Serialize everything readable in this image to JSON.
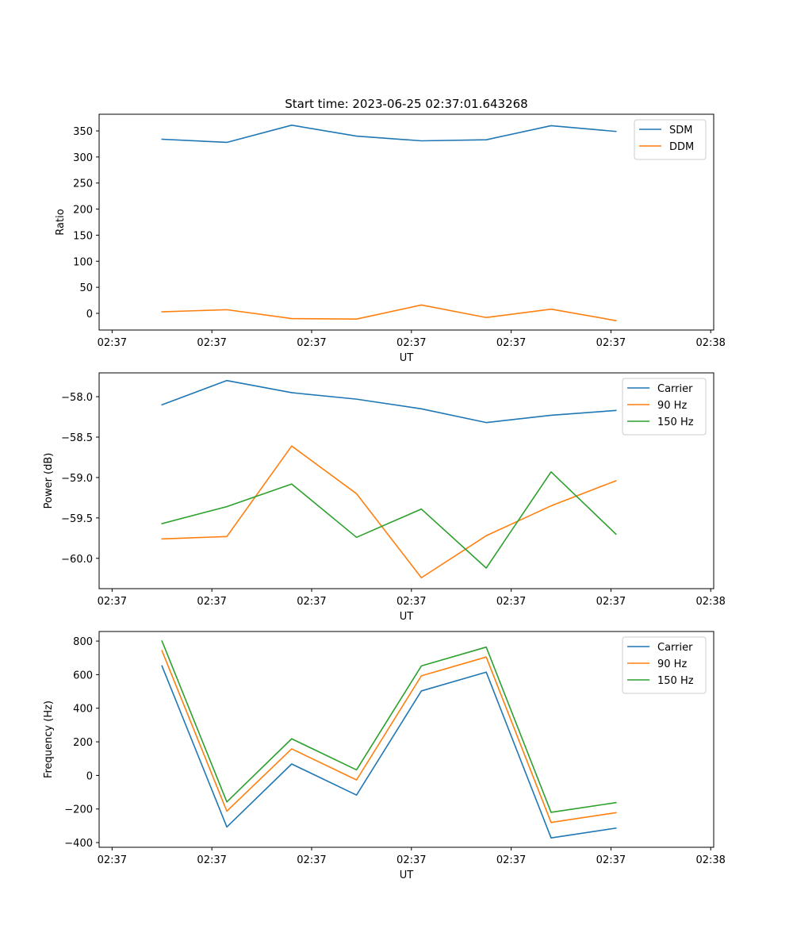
{
  "title": "Start time: 2023-06-25 02:37:01.643268",
  "colors": {
    "blue": "#1f77b4",
    "orange": "#ff7f0e",
    "green": "#2ca02c"
  },
  "chart_data": [
    {
      "type": "line",
      "title": "Start time: 2023-06-25 02:37:01.643268",
      "xlabel": "UT",
      "ylabel": "Ratio",
      "x_tick_labels": [
        "02:37",
        "02:37",
        "02:37",
        "02:37",
        "02:37",
        "02:37",
        "02:38"
      ],
      "x_tick_positions": [
        0,
        1,
        2,
        3,
        4,
        5,
        6
      ],
      "x_range": [
        -0.13,
        6.03
      ],
      "x": [
        0.5,
        1.15,
        1.8,
        2.45,
        3.1,
        3.75,
        4.4,
        5.05
      ],
      "ylim": [
        -32,
        382
      ],
      "y_ticks": [
        0,
        50,
        100,
        150,
        200,
        250,
        300,
        350
      ],
      "legend_position": "top-right",
      "grid": false,
      "series": [
        {
          "name": "SDM",
          "color": "#1f77b4",
          "values": [
            334,
            328,
            361,
            340,
            331,
            333,
            360,
            349
          ]
        },
        {
          "name": "DDM",
          "color": "#ff7f0e",
          "values": [
            3,
            7,
            -10,
            -11,
            16,
            -8,
            8,
            -14
          ]
        }
      ]
    },
    {
      "type": "line",
      "title": "",
      "xlabel": "UT",
      "ylabel": "Power (dB)",
      "x_tick_labels": [
        "02:37",
        "02:37",
        "02:37",
        "02:37",
        "02:37",
        "02:37",
        "02:38"
      ],
      "x_tick_positions": [
        0,
        1,
        2,
        3,
        4,
        5,
        6
      ],
      "x_range": [
        -0.13,
        6.03
      ],
      "x": [
        0.5,
        1.15,
        1.8,
        2.45,
        3.1,
        3.75,
        4.4,
        5.05
      ],
      "ylim": [
        -60.375,
        -57.705
      ],
      "y_ticks": [
        -60.0,
        -59.5,
        -59.0,
        -58.5,
        -58.0
      ],
      "y_tick_labels": [
        "−60.0",
        "−59.5",
        "−59.0",
        "−58.5",
        "−58.0"
      ],
      "legend_position": "top-right",
      "grid": false,
      "series": [
        {
          "name": "Carrier",
          "color": "#1f77b4",
          "values": [
            -58.1,
            -57.8,
            -57.95,
            -58.03,
            -58.15,
            -58.32,
            -58.23,
            -58.17
          ]
        },
        {
          "name": "90 Hz",
          "color": "#ff7f0e",
          "values": [
            -59.76,
            -59.73,
            -58.61,
            -59.2,
            -60.24,
            -59.72,
            -59.35,
            -59.04
          ]
        },
        {
          "name": "150 Hz",
          "color": "#2ca02c",
          "values": [
            -59.57,
            -59.36,
            -59.08,
            -59.74,
            -59.39,
            -60.12,
            -58.93,
            -59.7
          ]
        }
      ]
    },
    {
      "type": "line",
      "title": "",
      "xlabel": "UT",
      "ylabel": "Frequency (Hz)",
      "x_tick_labels": [
        "02:37",
        "02:37",
        "02:37",
        "02:37",
        "02:37",
        "02:37",
        "02:38"
      ],
      "x_tick_positions": [
        0,
        1,
        2,
        3,
        4,
        5,
        6
      ],
      "x_range": [
        -0.13,
        6.03
      ],
      "x": [
        0.5,
        1.15,
        1.8,
        2.45,
        3.1,
        3.75,
        4.4,
        5.05
      ],
      "ylim": [
        -428,
        857
      ],
      "y_ticks": [
        -400,
        -200,
        0,
        200,
        400,
        600,
        800
      ],
      "y_tick_labels": [
        "−400",
        "−200",
        "0",
        "200",
        "400",
        "600",
        "800"
      ],
      "legend_position": "top-right",
      "grid": false,
      "series": [
        {
          "name": "Carrier",
          "color": "#1f77b4",
          "values": [
            652,
            -307,
            68,
            -117,
            503,
            615,
            -372,
            -314
          ]
        },
        {
          "name": "90 Hz",
          "color": "#ff7f0e",
          "values": [
            742,
            -213,
            158,
            -27,
            593,
            705,
            -280,
            -222
          ]
        },
        {
          "name": "150 Hz",
          "color": "#2ca02c",
          "values": [
            800,
            -158,
            218,
            33,
            652,
            764,
            -220,
            -162
          ]
        }
      ]
    }
  ]
}
